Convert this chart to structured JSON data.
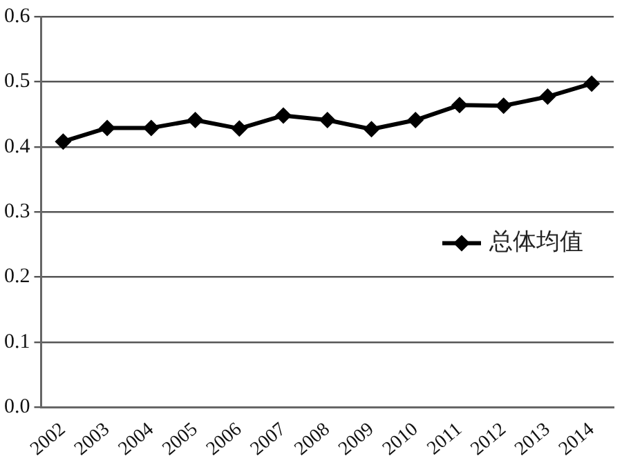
{
  "chart_data": {
    "type": "line",
    "categories": [
      "2002",
      "2003",
      "2004",
      "2005",
      "2006",
      "2007",
      "2008",
      "2009",
      "2010",
      "2011",
      "2012",
      "2013",
      "2014"
    ],
    "series": [
      {
        "name": "总体均值",
        "color": "#000000",
        "values": [
          0.408,
          0.429,
          0.429,
          0.441,
          0.428,
          0.448,
          0.441,
          0.427,
          0.441,
          0.464,
          0.463,
          0.477,
          0.497
        ]
      }
    ],
    "ylim": [
      0,
      0.6
    ],
    "yticks": [
      {
        "value": 0,
        "label": "0.0"
      },
      {
        "value": 0.1,
        "label": "0.1"
      },
      {
        "value": 0.2,
        "label": "0.2"
      },
      {
        "value": 0.3,
        "label": "0.3"
      },
      {
        "value": 0.4,
        "label": "0.4"
      },
      {
        "value": 0.5,
        "label": "0.5"
      },
      {
        "value": 0.6,
        "label": "0.6"
      }
    ],
    "grid": "y",
    "legend": "right",
    "marker": "diamond",
    "line_style": "solid"
  }
}
